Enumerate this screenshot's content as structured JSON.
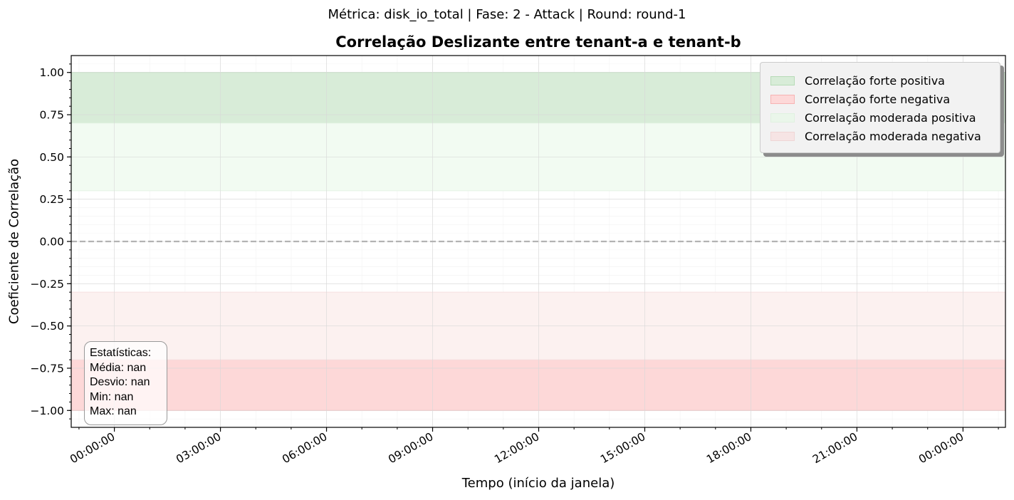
{
  "suptitle": "Métrica: disk_io_total | Fase: 2 - Attack | Round: round-1",
  "chart_data": {
    "type": "line",
    "title": "Correlação Deslizante entre tenant-a e tenant-b",
    "xlabel": "Tempo (início da janela)",
    "ylabel": "Coeficiente de Correlação",
    "ylim": [
      -1.1,
      1.1
    ],
    "y_ticks": [
      -1.0,
      -0.75,
      -0.5,
      -0.25,
      0.0,
      0.25,
      0.5,
      0.75,
      1.0
    ],
    "y_tick_labels": [
      "−1.00",
      "−0.75",
      "−0.50",
      "−0.25",
      "0.00",
      "0.25",
      "0.50",
      "0.75",
      "1.00"
    ],
    "x_tick_labels": [
      "00:00:00",
      "03:00:00",
      "06:00:00",
      "09:00:00",
      "12:00:00",
      "15:00:00",
      "18:00:00",
      "21:00:00",
      "00:00:00"
    ],
    "x_tick_hours": [
      0,
      3,
      6,
      9,
      12,
      15,
      18,
      21,
      24
    ],
    "xlim_hours": [
      -1.22,
      25.2
    ],
    "reference_line": {
      "y": 0.0,
      "style": "dashed",
      "color": "#b3b3b3"
    },
    "bands": [
      {
        "name": "Correlação forte positiva",
        "y0": 0.7,
        "y1": 1.0,
        "fill": "#d8ecd8",
        "edge": "#b7dbb7"
      },
      {
        "name": "Correlação forte negativa",
        "y0": -1.0,
        "y1": -0.7,
        "fill": "#fdd8d8",
        "edge": "#f6b3b3"
      },
      {
        "name": "Correlação moderada positiva",
        "y0": 0.3,
        "y1": 0.7,
        "fill": "#f2fbf2",
        "edge": "#e6f5e6"
      },
      {
        "name": "Correlação moderada negativa",
        "y0": -0.7,
        "y1": -0.3,
        "fill": "#fcf1f0",
        "edge": "#f6e2e2"
      }
    ],
    "series": [],
    "grid": true,
    "legend_position": "upper right",
    "stats_box": {
      "title": "Estatísticas:",
      "mean": "Média: nan",
      "std": "Desvio: nan",
      "min": "Min: nan",
      "max": "Max: nan"
    }
  }
}
